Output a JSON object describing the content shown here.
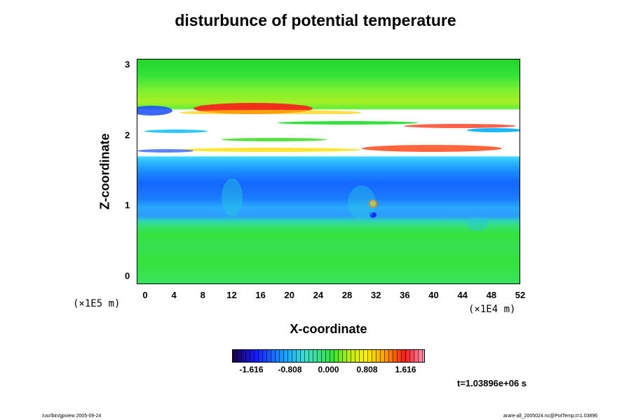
{
  "chart_data": {
    "type": "heatmap",
    "title": "disturbunce of potential temperature",
    "xlabel": "X-coordinate",
    "ylabel": "Z-coordinate",
    "x_ticks": [
      "0",
      "4",
      "8",
      "12",
      "16",
      "20",
      "24",
      "28",
      "32",
      "36",
      "40",
      "44",
      "48",
      "52"
    ],
    "y_ticks": [
      "0",
      "1",
      "2",
      "3"
    ],
    "xlim": [
      0,
      52
    ],
    "ylim": [
      0,
      3
    ],
    "x_unit": "(×1E4 m)",
    "y_unit": "(×1E5 m)",
    "colorbar_ticks": [
      "-1.616",
      "-0.808",
      "0.000",
      "0.808",
      "1.616"
    ],
    "colorbar_range": [
      -2.02,
      2.02
    ],
    "time_label": "t=1.03896e+06 s",
    "colors": {
      "low": "#1a004a",
      "blue": "#1a6cff",
      "cyan": "#18d6e8",
      "green": "#33e33a",
      "yellow": "#fff000",
      "red": "#ff1a1a",
      "high": "#ff9ab8"
    }
  },
  "footer": {
    "left": "/usr/bin/gpview 2005-09-24",
    "right": "arare-all_2005024.nc@PotTemp,t=1.03896"
  }
}
